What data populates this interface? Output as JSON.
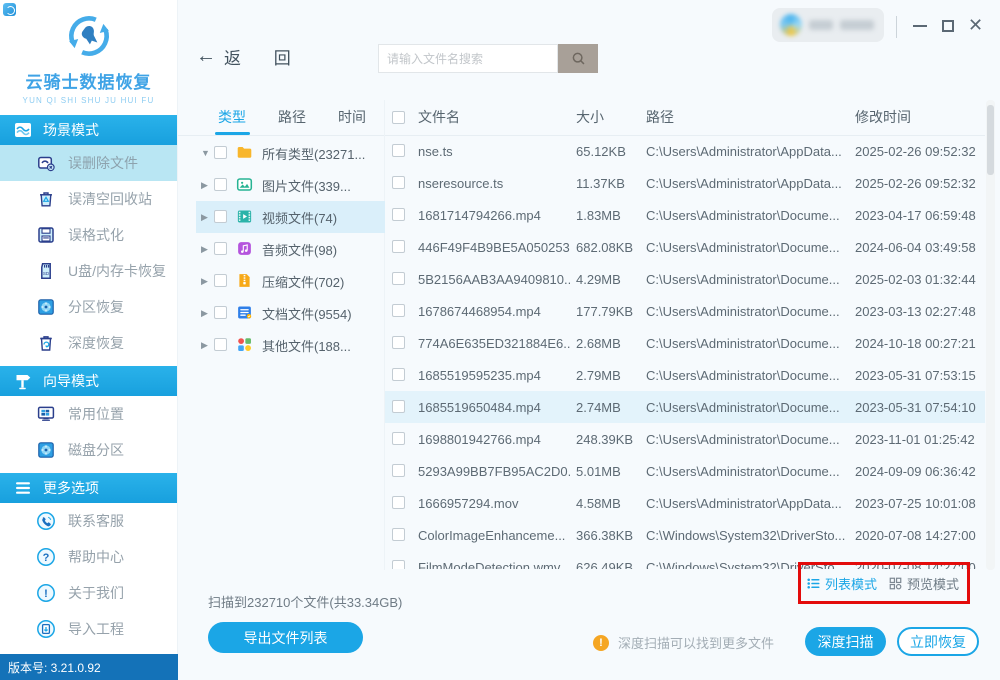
{
  "brand": {
    "title": "云骑士数据恢复",
    "subtitle": "YUN QI SHI SHU JU HUI FU"
  },
  "toolbar": {
    "back_label": "返 回",
    "search_placeholder": "请输入文件名搜索"
  },
  "sidebar": {
    "version_label": "版本号: 3.21.0.92",
    "sections": [
      {
        "label": "场景模式",
        "icon": "scene-mode-icon",
        "items": [
          {
            "label": "误删除文件",
            "icon": "deleted-file-icon",
            "active": true
          },
          {
            "label": "误清空回收站",
            "icon": "recycle-bin-icon",
            "active": false
          },
          {
            "label": "误格式化",
            "icon": "format-icon",
            "active": false
          },
          {
            "label": "U盘/内存卡恢复",
            "icon": "usb-card-icon",
            "active": false
          },
          {
            "label": "分区恢复",
            "icon": "partition-icon",
            "active": false
          },
          {
            "label": "深度恢复",
            "icon": "deep-recovery-icon",
            "active": false
          }
        ]
      },
      {
        "label": "向导模式",
        "icon": "wizard-mode-icon",
        "items": [
          {
            "label": "常用位置",
            "icon": "common-location-icon",
            "active": false
          },
          {
            "label": "磁盘分区",
            "icon": "disk-partition-icon",
            "active": false
          }
        ]
      },
      {
        "label": "更多选项",
        "icon": "more-options-icon",
        "items": [
          {
            "label": "联系客服",
            "icon": "customer-service-icon",
            "active": false
          },
          {
            "label": "帮助中心",
            "icon": "help-center-icon",
            "active": false
          },
          {
            "label": "关于我们",
            "icon": "about-us-icon",
            "active": false
          },
          {
            "label": "导入工程",
            "icon": "import-project-icon",
            "active": false
          }
        ]
      }
    ]
  },
  "tabs": [
    {
      "label": "类型",
      "active": true
    },
    {
      "label": "路径",
      "active": false
    },
    {
      "label": "时间",
      "active": false
    }
  ],
  "tree": {
    "items": [
      {
        "label": "所有类型(23271...",
        "icon": "folder-icon",
        "expanded": true,
        "selected": false
      },
      {
        "label": "图片文件(339...",
        "icon": "image-file-icon",
        "expanded": false,
        "selected": false
      },
      {
        "label": "视频文件(74)",
        "icon": "video-file-icon",
        "expanded": false,
        "selected": true
      },
      {
        "label": "音频文件(98)",
        "icon": "audio-file-icon",
        "expanded": false,
        "selected": false
      },
      {
        "label": "压缩文件(702)",
        "icon": "archive-file-icon",
        "expanded": false,
        "selected": false
      },
      {
        "label": "文档文件(9554)",
        "icon": "document-file-icon",
        "expanded": false,
        "selected": false
      },
      {
        "label": "其他文件(188...",
        "icon": "other-file-icon",
        "expanded": false,
        "selected": false
      }
    ]
  },
  "table": {
    "columns": {
      "name": "文件名",
      "size": "大小",
      "path": "路径",
      "time": "修改时间"
    },
    "rows": [
      {
        "name": "nse.ts",
        "size": "65.12KB",
        "path": "C:\\Users\\Administrator\\AppData...",
        "time": "2025-02-26 09:52:32",
        "selected": false
      },
      {
        "name": "nseresource.ts",
        "size": "11.37KB",
        "path": "C:\\Users\\Administrator\\AppData...",
        "time": "2025-02-26 09:52:32",
        "selected": false
      },
      {
        "name": "1681714794266.mp4",
        "size": "1.83MB",
        "path": "C:\\Users\\Administrator\\Docume...",
        "time": "2023-04-17 06:59:48",
        "selected": false
      },
      {
        "name": "446F49F4B9BE5A050253...",
        "size": "682.08KB",
        "path": "C:\\Users\\Administrator\\Docume...",
        "time": "2024-06-04 03:49:58",
        "selected": false
      },
      {
        "name": "5B2156AAB3AA9409810...",
        "size": "4.29MB",
        "path": "C:\\Users\\Administrator\\Docume...",
        "time": "2025-02-03 01:32:44",
        "selected": false
      },
      {
        "name": "1678674468954.mp4",
        "size": "177.79KB",
        "path": "C:\\Users\\Administrator\\Docume...",
        "time": "2023-03-13 02:27:48",
        "selected": false
      },
      {
        "name": "774A6E635ED321884E6...",
        "size": "2.68MB",
        "path": "C:\\Users\\Administrator\\Docume...",
        "time": "2024-10-18 00:27:21",
        "selected": false
      },
      {
        "name": "1685519595235.mp4",
        "size": "2.79MB",
        "path": "C:\\Users\\Administrator\\Docume...",
        "time": "2023-05-31 07:53:15",
        "selected": false
      },
      {
        "name": "1685519650484.mp4",
        "size": "2.74MB",
        "path": "C:\\Users\\Administrator\\Docume...",
        "time": "2023-05-31 07:54:10",
        "selected": true
      },
      {
        "name": "1698801942766.mp4",
        "size": "248.39KB",
        "path": "C:\\Users\\Administrator\\Docume...",
        "time": "2023-11-01 01:25:42",
        "selected": false
      },
      {
        "name": "5293A99BB7FB95AC2D0...",
        "size": "5.01MB",
        "path": "C:\\Users\\Administrator\\Docume...",
        "time": "2024-09-09 06:36:42",
        "selected": false
      },
      {
        "name": "1666957294.mov",
        "size": "4.58MB",
        "path": "C:\\Users\\Administrator\\AppData...",
        "time": "2023-07-25 10:01:08",
        "selected": false
      },
      {
        "name": "ColorImageEnhanceme...",
        "size": "366.38KB",
        "path": "C:\\Windows\\System32\\DriverSto...",
        "time": "2020-07-08 14:27:00",
        "selected": false
      },
      {
        "name": "FilmModeDetection.wmv",
        "size": "626.49KB",
        "path": "C:\\Windows\\System32\\DriverSto...",
        "time": "2020-07-08 14:27:00",
        "selected": false
      }
    ]
  },
  "view_modes": {
    "list_label": "列表模式",
    "preview_label": "预览模式"
  },
  "footer": {
    "scan_summary": "扫描到232710个文件(共33.34GB)",
    "export_label": "导出文件列表",
    "hint": "深度扫描可以找到更多文件",
    "deep_scan_label": "深度扫描",
    "recover_label": "立即恢复"
  },
  "window_controls": {
    "close": "✕"
  },
  "colors": {
    "accent": "#1ba6e6",
    "highlight_row": "#e3f3fb",
    "annotation_red": "#e30b0b",
    "warning_orange": "#f5a623",
    "version_bar": "#1472b8"
  }
}
